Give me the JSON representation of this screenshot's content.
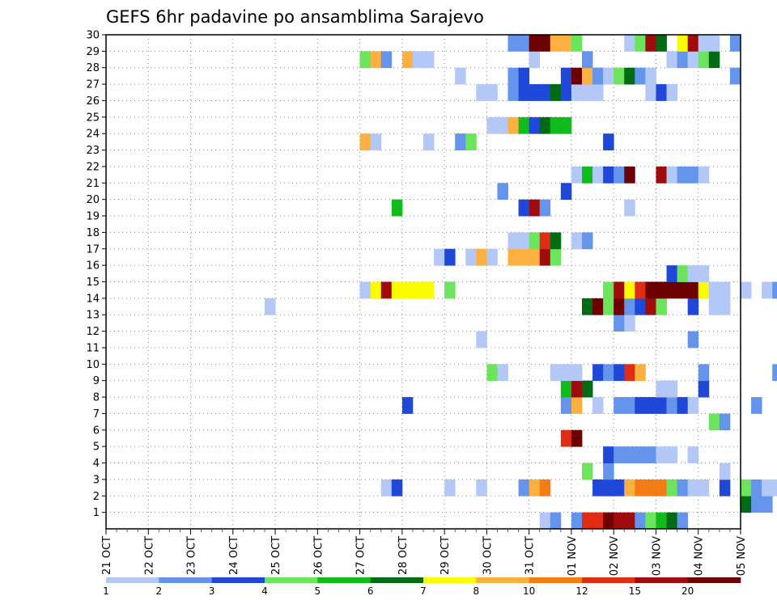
{
  "chart_data": {
    "type": "heatmap",
    "title": "GEFS 6hr padavine po ansamblima Sarajevo",
    "x_tick_labels": [
      "21 OCT",
      "22 OCT",
      "23 OCT",
      "24 OCT",
      "25 OCT",
      "26 OCT",
      "27 OCT",
      "28 OCT",
      "29 OCT",
      "30 OCT",
      "31 OCT",
      "01 NOV",
      "02 NOV",
      "03 NOV",
      "04 NOV",
      "05 NOV"
    ],
    "y_tick_labels": [
      "1",
      "2",
      "3",
      "4",
      "5",
      "6",
      "7",
      "8",
      "9",
      "10",
      "11",
      "12",
      "13",
      "14",
      "15",
      "16",
      "17",
      "18",
      "19",
      "20",
      "21",
      "22",
      "23",
      "24",
      "25",
      "26",
      "27",
      "28",
      "29",
      "30"
    ],
    "x_step_hours": 6,
    "grid": true,
    "legend": {
      "placement": "bottom",
      "bins": [
        {
          "label": "1",
          "color": "#b4c8f8"
        },
        {
          "label": "2",
          "color": "#6494ec"
        },
        {
          "label": "3",
          "color": "#1f48d8"
        },
        {
          "label": "4",
          "color": "#6ce45c"
        },
        {
          "label": "5",
          "color": "#10bc1c"
        },
        {
          "label": "6",
          "color": "#006a14"
        },
        {
          "label": "7",
          "color": "#fcfc00"
        },
        {
          "label": "8",
          "color": "#fcb040"
        },
        {
          "label": "10",
          "color": "#f47c14"
        },
        {
          "label": "12",
          "color": "#e02c14"
        },
        {
          "label": "15",
          "color": "#a00c0c"
        },
        {
          "label": "20",
          "color": "#6c0000"
        }
      ]
    },
    "rows": [
      {
        "member": 0,
        "cells": [
          [
            41,
            1
          ],
          [
            42,
            2
          ],
          [
            44,
            2
          ],
          [
            45,
            10
          ],
          [
            46,
            10
          ],
          [
            47,
            12
          ],
          [
            48,
            11
          ],
          [
            49,
            11
          ],
          [
            50,
            2
          ],
          [
            51,
            4
          ],
          [
            52,
            5
          ],
          [
            53,
            6
          ],
          [
            54,
            2
          ]
        ]
      },
      {
        "member": 1,
        "cells": [
          [
            60,
            6
          ],
          [
            61,
            2
          ],
          [
            62,
            2
          ],
          [
            65,
            1
          ],
          [
            66,
            1
          ],
          [
            67,
            1
          ],
          [
            68,
            1
          ],
          [
            69,
            1
          ],
          [
            70,
            1
          ],
          [
            72,
            1
          ],
          [
            73,
            1
          ],
          [
            74,
            1
          ],
          [
            75,
            1
          ],
          [
            76,
            1
          ]
        ]
      },
      {
        "member": 2,
        "cells": [
          [
            26,
            1
          ],
          [
            27,
            3
          ],
          [
            32,
            1
          ],
          [
            35,
            1
          ],
          [
            39,
            2
          ],
          [
            40,
            8
          ],
          [
            41,
            9
          ],
          [
            46,
            3
          ],
          [
            47,
            3
          ],
          [
            48,
            3
          ],
          [
            49,
            8
          ],
          [
            50,
            9
          ],
          [
            51,
            9
          ],
          [
            52,
            9
          ],
          [
            53,
            4
          ],
          [
            54,
            2
          ],
          [
            55,
            1
          ],
          [
            56,
            1
          ],
          [
            58,
            3
          ],
          [
            60,
            4
          ],
          [
            61,
            2
          ],
          [
            62,
            1
          ],
          [
            63,
            1
          ]
        ]
      },
      {
        "member": 3,
        "cells": [
          [
            45,
            4
          ],
          [
            47,
            2
          ],
          [
            58,
            1
          ]
        ]
      },
      {
        "member": 4,
        "cells": [
          [
            47,
            3
          ],
          [
            48,
            2
          ],
          [
            49,
            2
          ],
          [
            50,
            2
          ],
          [
            51,
            2
          ],
          [
            52,
            1
          ],
          [
            53,
            1
          ],
          [
            55,
            1
          ],
          [
            77,
            2
          ]
        ]
      },
      {
        "member": 5,
        "cells": [
          [
            43,
            10
          ],
          [
            44,
            12
          ]
        ]
      },
      {
        "member": 6,
        "cells": [
          [
            57,
            4
          ],
          [
            58,
            2
          ]
        ]
      },
      {
        "member": 7,
        "cells": [
          [
            28,
            3
          ],
          [
            43,
            2
          ],
          [
            44,
            8
          ],
          [
            46,
            1
          ],
          [
            48,
            2
          ],
          [
            49,
            2
          ],
          [
            50,
            3
          ],
          [
            51,
            3
          ],
          [
            52,
            3
          ],
          [
            53,
            2
          ],
          [
            54,
            3
          ],
          [
            55,
            1
          ],
          [
            61,
            2
          ]
        ]
      },
      {
        "member": 8,
        "cells": [
          [
            43,
            5
          ],
          [
            44,
            11
          ],
          [
            45,
            6
          ],
          [
            52,
            1
          ],
          [
            53,
            1
          ],
          [
            56,
            3
          ],
          [
            70,
            10
          ],
          [
            71,
            1
          ],
          [
            73,
            1
          ]
        ]
      },
      {
        "member": 9,
        "cells": [
          [
            36,
            4
          ],
          [
            37,
            1
          ],
          [
            42,
            1
          ],
          [
            43,
            1
          ],
          [
            44,
            1
          ],
          [
            46,
            3
          ],
          [
            47,
            2
          ],
          [
            48,
            3
          ],
          [
            49,
            10
          ],
          [
            50,
            8
          ],
          [
            56,
            2
          ],
          [
            63,
            2
          ],
          [
            67,
            1
          ],
          [
            68,
            1
          ],
          [
            69,
            1
          ],
          [
            70,
            1
          ],
          [
            71,
            1
          ]
        ]
      },
      {
        "member": 10,
        "cells": [
          [
            64,
            6
          ]
        ]
      },
      {
        "member": 11,
        "cells": [
          [
            35,
            1
          ],
          [
            55,
            2
          ],
          [
            70,
            2
          ],
          [
            71,
            3
          ]
        ]
      },
      {
        "member": 12,
        "cells": [
          [
            48,
            2
          ],
          [
            49,
            1
          ],
          [
            77,
            5
          ]
        ]
      },
      {
        "member": 13,
        "cells": [
          [
            15,
            1
          ],
          [
            45,
            6
          ],
          [
            46,
            12
          ],
          [
            47,
            4
          ],
          [
            48,
            12
          ],
          [
            49,
            2
          ],
          [
            50,
            3
          ],
          [
            51,
            11
          ],
          [
            52,
            4
          ],
          [
            55,
            3
          ],
          [
            57,
            1
          ],
          [
            58,
            1
          ],
          [
            70,
            1
          ],
          [
            71,
            3
          ],
          [
            72,
            1
          ]
        ]
      },
      {
        "member": 14,
        "cells": [
          [
            24,
            1
          ],
          [
            25,
            7
          ],
          [
            26,
            11
          ],
          [
            27,
            7
          ],
          [
            28,
            7
          ],
          [
            29,
            7
          ],
          [
            30,
            7
          ],
          [
            32,
            4
          ],
          [
            47,
            4
          ],
          [
            48,
            11
          ],
          [
            49,
            7
          ],
          [
            50,
            10
          ],
          [
            51,
            12
          ],
          [
            52,
            12
          ],
          [
            53,
            12
          ],
          [
            54,
            12
          ],
          [
            55,
            12
          ],
          [
            56,
            7
          ],
          [
            57,
            1
          ],
          [
            58,
            1
          ],
          [
            60,
            1
          ],
          [
            62,
            1
          ],
          [
            63,
            2
          ],
          [
            64,
            1
          ],
          [
            65,
            1
          ]
        ]
      },
      {
        "member": 15,
        "cells": [
          [
            53,
            3
          ],
          [
            54,
            4
          ],
          [
            55,
            1
          ],
          [
            56,
            1
          ]
        ]
      },
      {
        "member": 16,
        "cells": [
          [
            31,
            1
          ],
          [
            32,
            3
          ],
          [
            34,
            1
          ],
          [
            35,
            8
          ],
          [
            36,
            1
          ],
          [
            38,
            8
          ],
          [
            39,
            8
          ],
          [
            40,
            8
          ],
          [
            41,
            11
          ],
          [
            42,
            4
          ],
          [
            65,
            3
          ],
          [
            66,
            4
          ],
          [
            68,
            1
          ]
        ]
      },
      {
        "member": 17,
        "cells": [
          [
            38,
            1
          ],
          [
            39,
            1
          ],
          [
            40,
            4
          ],
          [
            41,
            10
          ],
          [
            42,
            6
          ],
          [
            44,
            1
          ],
          [
            45,
            2
          ],
          [
            69,
            1
          ],
          [
            70,
            1
          ],
          [
            71,
            2
          ],
          [
            72,
            2
          ]
        ]
      },
      {
        "member": 18,
        "cells": [
          [
            72,
            1
          ]
        ]
      },
      {
        "member": 19,
        "cells": [
          [
            27,
            5
          ],
          [
            39,
            3
          ],
          [
            40,
            11
          ],
          [
            41,
            2
          ],
          [
            49,
            1
          ],
          [
            72,
            1
          ]
        ]
      },
      {
        "member": 20,
        "cells": [
          [
            37,
            2
          ],
          [
            43,
            3
          ],
          [
            73,
            1
          ]
        ]
      },
      {
        "member": 21,
        "cells": [
          [
            44,
            1
          ],
          [
            45,
            5
          ],
          [
            46,
            1
          ],
          [
            47,
            3
          ],
          [
            48,
            2
          ],
          [
            49,
            12
          ],
          [
            52,
            11
          ],
          [
            53,
            1
          ],
          [
            54,
            2
          ],
          [
            55,
            2
          ],
          [
            56,
            1
          ]
        ]
      },
      {
        "member": 22,
        "cells": []
      },
      {
        "member": 23,
        "cells": [
          [
            24,
            8
          ],
          [
            25,
            1
          ],
          [
            30,
            1
          ],
          [
            33,
            2
          ],
          [
            34,
            4
          ],
          [
            47,
            3
          ]
        ]
      },
      {
        "member": 24,
        "cells": [
          [
            36,
            1
          ],
          [
            37,
            1
          ],
          [
            38,
            8
          ],
          [
            39,
            5
          ],
          [
            40,
            3
          ],
          [
            41,
            6
          ],
          [
            42,
            5
          ],
          [
            43,
            5
          ]
        ]
      },
      {
        "member": 25,
        "cells": []
      },
      {
        "member": 26,
        "cells": [
          [
            35,
            1
          ],
          [
            36,
            1
          ],
          [
            38,
            2
          ],
          [
            39,
            3
          ],
          [
            40,
            3
          ],
          [
            41,
            3
          ],
          [
            42,
            6
          ],
          [
            43,
            3
          ],
          [
            44,
            1
          ],
          [
            45,
            1
          ],
          [
            46,
            1
          ],
          [
            51,
            1
          ],
          [
            52,
            3
          ],
          [
            53,
            1
          ]
        ]
      },
      {
        "member": 27,
        "cells": [
          [
            33,
            1
          ],
          [
            38,
            2
          ],
          [
            39,
            3
          ],
          [
            43,
            3
          ],
          [
            44,
            12
          ],
          [
            45,
            8
          ],
          [
            46,
            2
          ],
          [
            47,
            1
          ],
          [
            48,
            4
          ],
          [
            49,
            6
          ],
          [
            50,
            2
          ],
          [
            51,
            1
          ],
          [
            59,
            2
          ]
        ]
      },
      {
        "member": 28,
        "cells": [
          [
            24,
            4
          ],
          [
            25,
            8
          ],
          [
            26,
            2
          ],
          [
            28,
            8
          ],
          [
            29,
            1
          ],
          [
            30,
            1
          ],
          [
            40,
            1
          ],
          [
            45,
            2
          ],
          [
            53,
            1
          ],
          [
            54,
            2
          ],
          [
            55,
            1
          ],
          [
            56,
            4
          ],
          [
            57,
            6
          ]
        ]
      },
      {
        "member": 29,
        "cells": [
          [
            38,
            2
          ],
          [
            39,
            2
          ],
          [
            40,
            12
          ],
          [
            41,
            12
          ],
          [
            42,
            8
          ],
          [
            43,
            8
          ],
          [
            44,
            4
          ],
          [
            49,
            1
          ],
          [
            50,
            4
          ],
          [
            51,
            11
          ],
          [
            52,
            6
          ],
          [
            54,
            7
          ],
          [
            55,
            11
          ],
          [
            56,
            1
          ],
          [
            57,
            1
          ],
          [
            59,
            2
          ]
        ]
      }
    ]
  }
}
